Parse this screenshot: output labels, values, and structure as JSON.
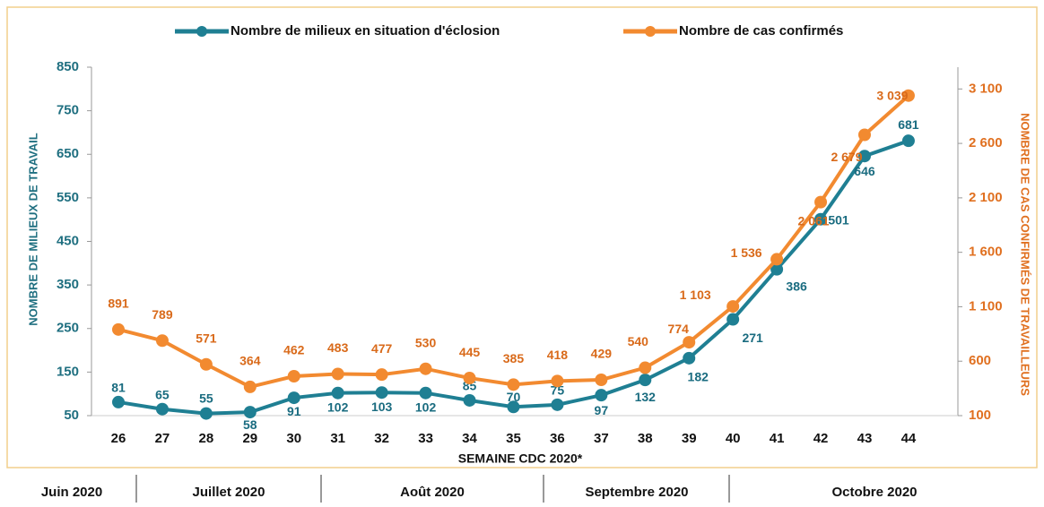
{
  "chart_data": {
    "type": "line",
    "x_label": "SEMAINE CDC 2020*",
    "y_label": "NOMBRE DE MILIEUX DE TRAVAIL",
    "y2_label": "NOMBRE DE CAS CONFIRMÉS DE TRAVAILLEURS",
    "categories": [
      "26",
      "27",
      "28",
      "29",
      "30",
      "31",
      "32",
      "33",
      "34",
      "35",
      "36",
      "37",
      "38",
      "39",
      "40",
      "41",
      "42",
      "43",
      "44"
    ],
    "ylim": [
      50,
      850
    ],
    "yticks": [
      50,
      150,
      250,
      350,
      450,
      550,
      650,
      750,
      850
    ],
    "y2lim": [
      100,
      3300
    ],
    "y2ticks": [
      100,
      600,
      {
        "value": 1100,
        "label": "1 100"
      },
      {
        "value": 1600,
        "label": "1 600"
      },
      {
        "value": 2100,
        "label": "2 100"
      },
      {
        "value": 2600,
        "label": "2 600"
      },
      {
        "value": 3100,
        "label": "3 100"
      }
    ],
    "legend": "top",
    "series": [
      {
        "name": "Nombre de milieux en situation d'éclosion",
        "color": "#1f7f93",
        "values": [
          81,
          65,
          55,
          58,
          91,
          102,
          103,
          102,
          85,
          70,
          75,
          97,
          132,
          182,
          271,
          386,
          501,
          646,
          681
        ]
      },
      {
        "name": "Nombre de cas confirmés",
        "color": "#f28a30",
        "axis": "y2",
        "values": [
          891,
          789,
          571,
          364,
          462,
          483,
          477,
          530,
          445,
          385,
          418,
          429,
          540,
          774,
          1103,
          1536,
          2061,
          2679,
          3039
        ],
        "value_labels": [
          "891",
          "789",
          "571",
          "364",
          "462",
          "483",
          "477",
          "530",
          "445",
          "385",
          "418",
          "429",
          "540",
          "774",
          "1 103",
          "1 536",
          "2 061",
          "2 679",
          "3 039"
        ]
      }
    ],
    "months": [
      "Juin 2020",
      "Juillet 2020",
      "Août 2020",
      "Septembre 2020",
      "Octobre 2020"
    ]
  }
}
